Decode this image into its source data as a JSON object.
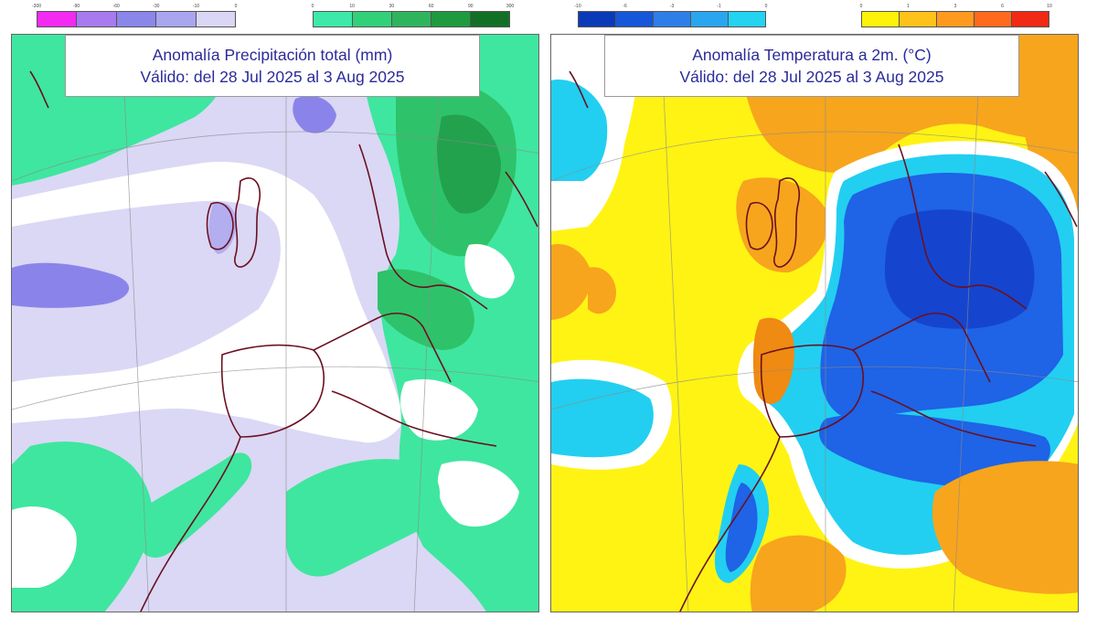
{
  "panels": [
    {
      "id": "precip",
      "title_line1": "Anomalía Precipitación total (mm)",
      "title_line2": "Válido: del 28 Jul 2025 al 3 Aug 2025",
      "legend_negative": {
        "colors": [
          "#f22af2",
          "#a77af0",
          "#8a86ea",
          "#a9a5ef",
          "#d9d6f6"
        ],
        "ticks": [
          "-300",
          "-90",
          "-60",
          "-30",
          "-10",
          "0"
        ]
      },
      "legend_positive": {
        "colors": [
          "#3ee8a8",
          "#33d07a",
          "#2fb45e",
          "#1f9a3f",
          "#127026"
        ],
        "ticks": [
          "0",
          "10",
          "30",
          "60",
          "90",
          "300"
        ]
      },
      "colors": {
        "background": "#dad8f5",
        "white_band": "#ffffff",
        "light_green": "#3fe69f",
        "mid_green": "#2ec36a",
        "dark_green": "#22a24d",
        "light_purple": "#b3aef0",
        "purple": "#8a84ea",
        "coast": "#6b1020"
      }
    },
    {
      "id": "temp",
      "title_line1": "Anomalía Temperatura a 2m. (°C)",
      "title_line2": "Válido: del 28 Jul 2025 al 3 Aug 2025",
      "legend_negative": {
        "colors": [
          "#0b3ab8",
          "#1656d9",
          "#2e7ee8",
          "#2aa6ef",
          "#23d3f0"
        ],
        "ticks": [
          "-10",
          "-6",
          "-3",
          "-1",
          "0"
        ]
      },
      "legend_positive": {
        "colors": [
          "#fff20a",
          "#ffc21a",
          "#ff9a1f",
          "#ff6a1f",
          "#f02a14"
        ],
        "ticks": [
          "0",
          "1",
          "3",
          "6",
          "10"
        ]
      },
      "colors": {
        "background": "#fff314",
        "white_band": "#ffffff",
        "cyan": "#22cff0",
        "blue": "#1f63e6",
        "dark_blue": "#1545cf",
        "orange": "#f7a51d",
        "dark_orange": "#ef8a12",
        "coast": "#6b1020"
      }
    }
  ]
}
